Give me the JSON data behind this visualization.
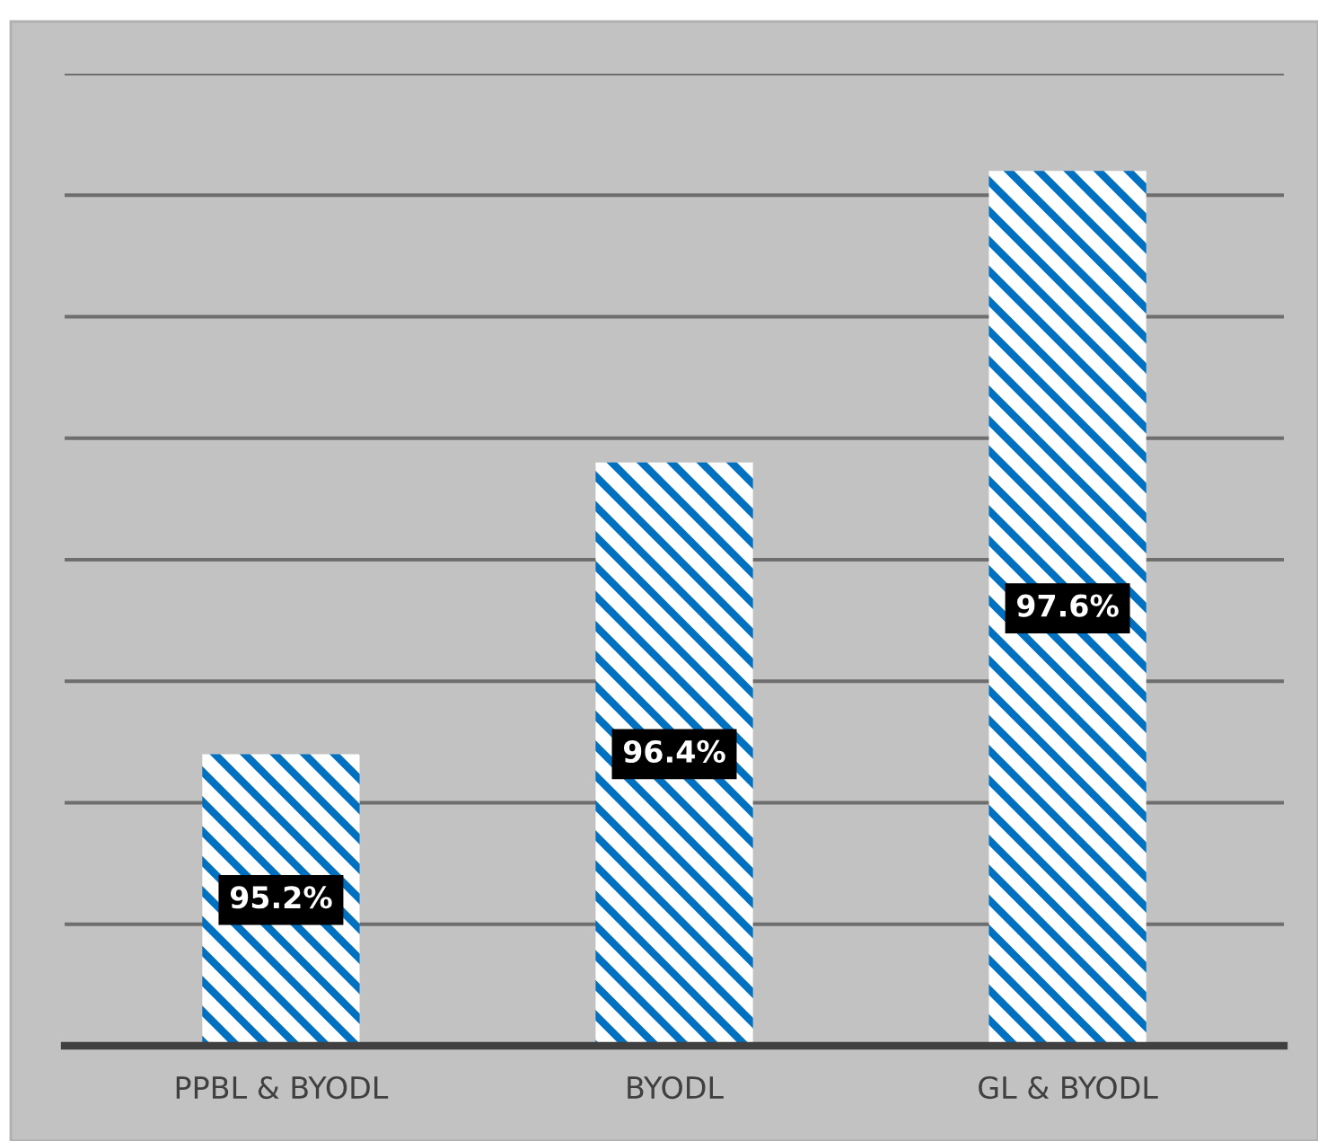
{
  "chart_data": {
    "type": "bar",
    "categories": [
      "PPBL & BYODL",
      "BYODL",
      "GL & BYODL"
    ],
    "values": [
      95.2,
      96.4,
      97.6
    ],
    "value_labels": [
      "95.2%",
      "96.4%",
      "97.6%"
    ],
    "color": "#0070c0",
    "ylim": [
      94,
      98
    ],
    "yticks": [
      {
        "value": 94.5,
        "label": null
      },
      {
        "value": 95,
        "label": null
      },
      {
        "value": 95.5,
        "label": null
      },
      {
        "value": 96,
        "label": null
      },
      {
        "value": 96.5,
        "label": null
      },
      {
        "value": 97,
        "label": null
      },
      {
        "value": 97.5,
        "label": null
      },
      {
        "value": 98,
        "label": null
      }
    ],
    "tick_labels": "x",
    "grid": "y"
  }
}
